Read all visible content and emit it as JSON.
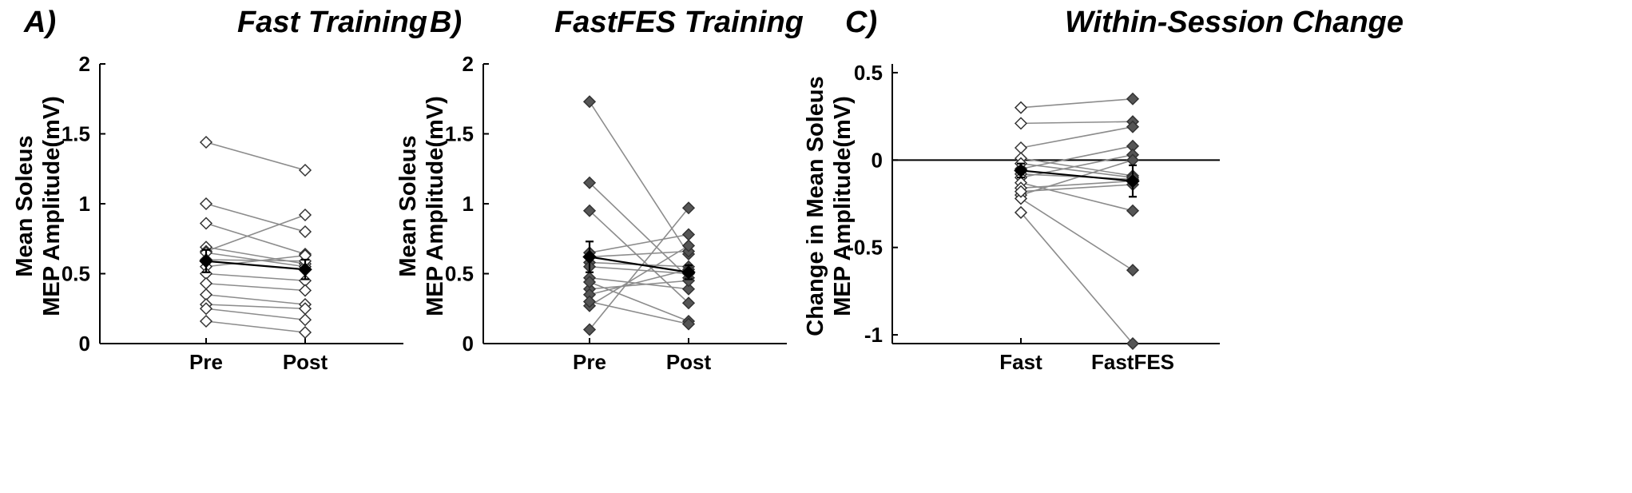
{
  "chart_data": [
    {
      "panel_label": "A)",
      "title": "Fast Training",
      "type": "line",
      "ylabel": [
        "Mean Soleus",
        "MEP Amplitude(mV)"
      ],
      "xlabel": "",
      "categories": [
        "Pre",
        "Post"
      ],
      "ylim": [
        0,
        2
      ],
      "yticks": [
        "0",
        "0.5",
        "1",
        "1.5",
        "2"
      ],
      "marker_fill": "#ffffff",
      "reference_zero_line": false,
      "subjects": [
        [
          1.44,
          1.24
        ],
        [
          1.0,
          0.8
        ],
        [
          0.86,
          0.64
        ],
        [
          0.69,
          0.57
        ],
        [
          0.66,
          0.92
        ],
        [
          0.65,
          0.55
        ],
        [
          0.6,
          0.59
        ],
        [
          0.55,
          0.63
        ],
        [
          0.5,
          0.45
        ],
        [
          0.43,
          0.38
        ],
        [
          0.35,
          0.28
        ],
        [
          0.28,
          0.25
        ],
        [
          0.25,
          0.17
        ],
        [
          0.16,
          0.08
        ]
      ],
      "mean": [
        0.59,
        0.53
      ],
      "sem": [
        0.08,
        0.07
      ]
    },
    {
      "panel_label": "B)",
      "title": "FastFES Training",
      "type": "line",
      "ylabel": [
        "Mean Soleus",
        "MEP Amplitude(mV)"
      ],
      "xlabel": "",
      "categories": [
        "Pre",
        "Post"
      ],
      "ylim": [
        0,
        2
      ],
      "yticks": [
        "0",
        "0.5",
        "1",
        "1.5",
        "2"
      ],
      "marker_fill": "#555555",
      "reference_zero_line": false,
      "subjects": [
        [
          1.73,
          0.64
        ],
        [
          1.15,
          0.47
        ],
        [
          0.95,
          0.29
        ],
        [
          0.65,
          0.78
        ],
        [
          0.62,
          0.66
        ],
        [
          0.58,
          0.55
        ],
        [
          0.55,
          0.5
        ],
        [
          0.47,
          0.39
        ],
        [
          0.39,
          0.45
        ],
        [
          0.35,
          0.53
        ],
        [
          0.27,
          0.7
        ],
        [
          0.1,
          0.97
        ],
        [
          0.44,
          0.16
        ],
        [
          0.3,
          0.14
        ]
      ],
      "mean": [
        0.62,
        0.51
      ],
      "sem": [
        0.11,
        0.05
      ]
    },
    {
      "panel_label": "C)",
      "title": "Within-Session Change",
      "type": "line",
      "ylabel": [
        "Change in Mean Soleus",
        "MEP Amplitude(mV)"
      ],
      "xlabel": "",
      "categories": [
        "Fast",
        "FastFES"
      ],
      "ylim": [
        -1.05,
        0.55
      ],
      "yticks": [
        "0.5",
        "0",
        "-0.5",
        "-1"
      ],
      "ytick_values": [
        0.5,
        0,
        -0.5,
        -1
      ],
      "marker_fill_left": "#ffffff",
      "marker_fill_right": "#555555",
      "reference_zero_line": true,
      "subjects": [
        [
          0.3,
          0.35
        ],
        [
          0.21,
          0.22
        ],
        [
          0.07,
          0.19
        ],
        [
          0.01,
          -0.09
        ],
        [
          -0.05,
          0.08
        ],
        [
          -0.08,
          -0.11
        ],
        [
          -0.1,
          0.03
        ],
        [
          -0.13,
          -0.29
        ],
        [
          -0.16,
          -0.12
        ],
        [
          -0.2,
          0.0
        ],
        [
          -0.22,
          -0.63
        ],
        [
          -0.3,
          -1.05
        ],
        [
          -0.02,
          -0.1
        ],
        [
          -0.18,
          -0.14
        ]
      ],
      "mean": [
        -0.06,
        -0.12
      ],
      "sem": [
        0.04,
        0.09
      ]
    }
  ]
}
